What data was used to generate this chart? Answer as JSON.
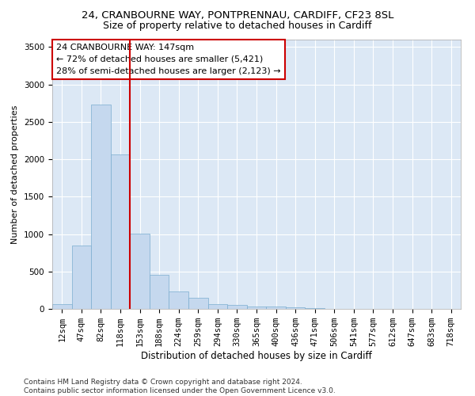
{
  "title": "24, CRANBOURNE WAY, PONTPRENNAU, CARDIFF, CF23 8SL",
  "subtitle": "Size of property relative to detached houses in Cardiff",
  "xlabel": "Distribution of detached houses by size in Cardiff",
  "ylabel": "Number of detached properties",
  "categories": [
    "12sqm",
    "47sqm",
    "82sqm",
    "118sqm",
    "153sqm",
    "188sqm",
    "224sqm",
    "259sqm",
    "294sqm",
    "330sqm",
    "365sqm",
    "400sqm",
    "436sqm",
    "471sqm",
    "506sqm",
    "541sqm",
    "577sqm",
    "612sqm",
    "647sqm",
    "683sqm",
    "718sqm"
  ],
  "values": [
    60,
    850,
    2730,
    2060,
    1010,
    460,
    230,
    150,
    65,
    55,
    35,
    30,
    18,
    12,
    0,
    0,
    0,
    0,
    0,
    0,
    0
  ],
  "bar_color": "#c5d8ee",
  "bar_edgecolor": "#7aadcf",
  "vline_color": "#cc0000",
  "annotation_text": "24 CRANBOURNE WAY: 147sqm\n← 72% of detached houses are smaller (5,421)\n28% of semi-detached houses are larger (2,123) →",
  "annotation_box_color": "#cc0000",
  "ylim": [
    0,
    3600
  ],
  "yticks": [
    0,
    500,
    1000,
    1500,
    2000,
    2500,
    3000,
    3500
  ],
  "bg_color": "#dce8f5",
  "footer_text": "Contains HM Land Registry data © Crown copyright and database right 2024.\nContains public sector information licensed under the Open Government Licence v3.0.",
  "title_fontsize": 9.5,
  "subtitle_fontsize": 9,
  "xlabel_fontsize": 8.5,
  "ylabel_fontsize": 8,
  "tick_fontsize": 7.5,
  "annotation_fontsize": 8,
  "footer_fontsize": 6.5
}
